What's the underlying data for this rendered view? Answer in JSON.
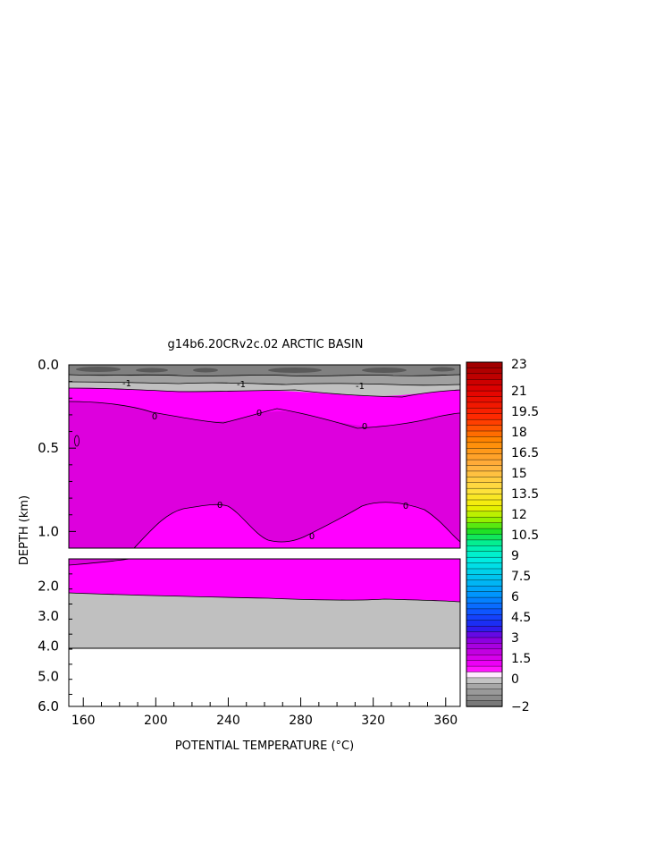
{
  "chart_data": {
    "type": "heatmap",
    "title": "g14b6.20CRv2c.02 ARCTIC BASIN",
    "xlabel": "POTENTIAL TEMPERATURE (°C)",
    "ylabel": "DEPTH (km)",
    "x_ticks": [
      "160",
      "200",
      "240",
      "280",
      "320",
      "360"
    ],
    "x_tick_values": [
      160,
      200,
      240,
      280,
      320,
      360
    ],
    "xlim": [
      152,
      368
    ],
    "upper_panel": {
      "y_ticks": [
        "0.0",
        "0.5",
        "1.0"
      ],
      "y_tick_values": [
        0.0,
        0.5,
        1.0
      ],
      "ylim": [
        0.0,
        1.1
      ]
    },
    "lower_panel": {
      "y_ticks": [
        "2.0",
        "3.0",
        "4.0",
        "5.0",
        "6.0"
      ],
      "y_tick_values": [
        2.0,
        3.0,
        4.0,
        5.0,
        6.0
      ],
      "ylim": [
        1.1,
        6.0
      ]
    },
    "colorbar": {
      "tick_labels": [
        "23",
        "21",
        "19.5",
        "18",
        "16.5",
        "15",
        "13.5",
        "12",
        "10.5",
        "9",
        "7.5",
        "6",
        "4.5",
        "3",
        "1.5",
        "0",
        "−2"
      ],
      "range": [
        -2,
        23
      ]
    },
    "contour_labels": [
      "-1",
      "-1",
      "-1",
      "0",
      "0",
      "0",
      "0",
      "0",
      "0",
      "0"
    ],
    "fields": {
      "cold_surface_layer": {
        "depth_range": [
          0.0,
          0.15
        ],
        "value_range": [
          -2,
          -1
        ]
      },
      "transition_layer": {
        "depth_range": [
          0.15,
          0.2
        ],
        "value_range": [
          -1,
          0
        ]
      },
      "intermediate_layer": {
        "depth_range": [
          0.2,
          1.1
        ],
        "value_range": [
          0,
          1
        ]
      },
      "deep_layer": {
        "depth_range": [
          1.1,
          2.4
        ],
        "value_range": [
          0,
          0.5
        ]
      },
      "bottom_layer": {
        "depth_range": [
          2.4,
          4.1
        ],
        "value_range": [
          -1,
          0
        ]
      }
    }
  }
}
